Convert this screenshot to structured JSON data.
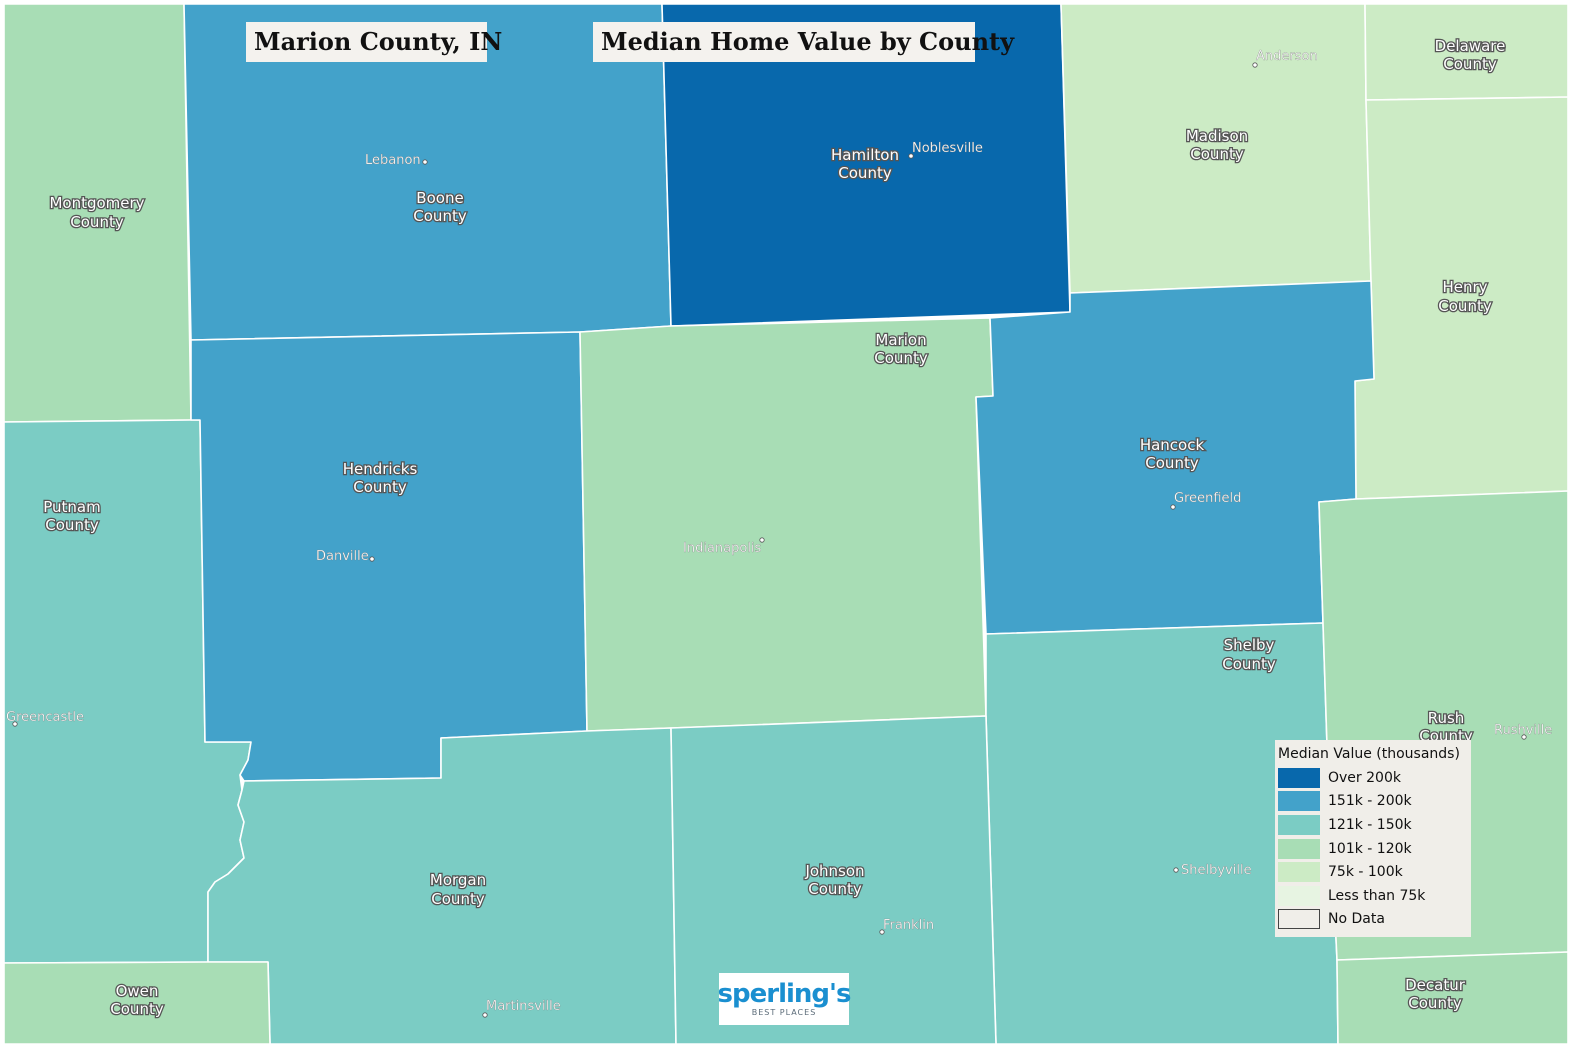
{
  "title_left": "Marion County, IN",
  "title_right": "Median Home Value by County",
  "palette": {
    "over_200k": "#0868ac",
    "151k_200k": "#43a2ca",
    "121k_150k": "#7bccc4",
    "101k_120k": "#a8ddb5",
    "75k_100k": "#ccebc5",
    "less_than_75k": "#e7f4e2",
    "no_data": "#f0eee9"
  },
  "counties": {
    "montgomery": {
      "name": [
        "Montgomery",
        "County"
      ],
      "category": "101k_120k"
    },
    "boone": {
      "name": [
        "Boone",
        "County"
      ],
      "category": "151k_200k"
    },
    "hamilton": {
      "name": [
        "Hamilton",
        "County"
      ],
      "category": "over_200k"
    },
    "madison": {
      "name": [
        "Madison",
        "County"
      ],
      "category": "75k_100k"
    },
    "delaware": {
      "name": [
        "Delaware",
        "County"
      ],
      "category": "75k_100k"
    },
    "henry": {
      "name": [
        "Henry",
        "County"
      ],
      "category": "75k_100k"
    },
    "putnam": {
      "name": [
        "Putnam",
        "County"
      ],
      "category": "121k_150k"
    },
    "hendricks": {
      "name": [
        "Hendricks",
        "County"
      ],
      "category": "151k_200k"
    },
    "marion": {
      "name": [
        "Marion",
        "County"
      ],
      "category": "101k_120k"
    },
    "hancock": {
      "name": [
        "Hancock",
        "County"
      ],
      "category": "151k_200k"
    },
    "shelby": {
      "name": [
        "Shelby",
        "County"
      ],
      "category": "121k_150k"
    },
    "rush": {
      "name": [
        "Rush",
        "County"
      ],
      "category": "101k_120k"
    },
    "morgan": {
      "name": [
        "Morgan",
        "County"
      ],
      "category": "121k_150k"
    },
    "johnson": {
      "name": [
        "Johnson",
        "County"
      ],
      "category": "121k_150k"
    },
    "owen": {
      "name": [
        "Owen",
        "County"
      ],
      "category": "101k_120k"
    },
    "decatur": {
      "name": [
        "Decatur",
        "County"
      ],
      "category": "101k_120k"
    }
  },
  "cities": [
    "Anderson",
    "Lebanon",
    "Noblesville",
    "Greenfield",
    "Danville",
    "Indianapolis",
    "Greencastle",
    "Rushville",
    "Shelbyville",
    "Franklin",
    "Martinsville"
  ],
  "legend": {
    "title": "Median Value (thousands)",
    "items": [
      {
        "label": "Over 200k",
        "category": "over_200k"
      },
      {
        "label": "151k - 200k",
        "category": "151k_200k"
      },
      {
        "label": "121k - 150k",
        "category": "121k_150k"
      },
      {
        "label": "101k - 120k",
        "category": "101k_120k"
      },
      {
        "label": "75k - 100k",
        "category": "75k_100k"
      },
      {
        "label": "Less than 75k",
        "category": "less_than_75k"
      },
      {
        "label": "No Data",
        "category": "no_data"
      }
    ]
  },
  "logo": {
    "main": "sperling's",
    "sub": "BEST PLACES"
  }
}
